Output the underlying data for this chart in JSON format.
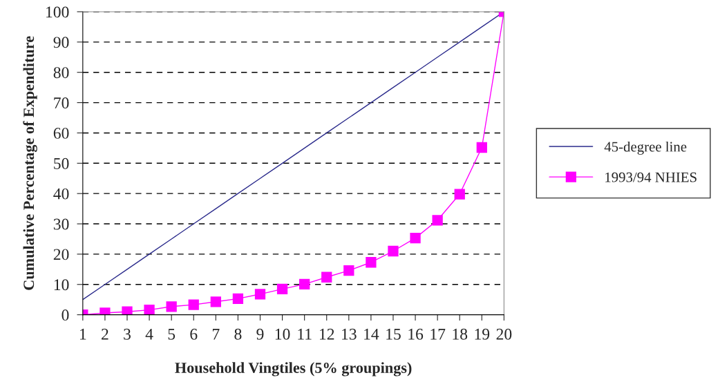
{
  "chart_data": {
    "type": "line",
    "xlabel": "Household Vingtiles (5% groupings)",
    "ylabel": "Cumulative Percentage of Expenditure",
    "x": [
      1,
      2,
      3,
      4,
      5,
      6,
      7,
      8,
      9,
      10,
      11,
      12,
      13,
      14,
      15,
      16,
      17,
      18,
      19,
      20
    ],
    "xlim": [
      1,
      20
    ],
    "xticks": [
      1,
      2,
      3,
      4,
      5,
      6,
      7,
      8,
      9,
      10,
      11,
      12,
      13,
      14,
      15,
      16,
      17,
      18,
      19,
      20
    ],
    "ylim": [
      0,
      100
    ],
    "yticks": [
      0,
      10,
      20,
      30,
      40,
      50,
      60,
      70,
      80,
      90,
      100
    ],
    "grid": "y",
    "legend": "right",
    "series": [
      {
        "name": "45-degree line",
        "color": "#2b2b8c",
        "marker": "none",
        "values": [
          5,
          10,
          15,
          20,
          25,
          30,
          35,
          40,
          45,
          50,
          55,
          60,
          65,
          70,
          75,
          80,
          85,
          90,
          95,
          100
        ]
      },
      {
        "name": "1993/94 NHIES",
        "color": "#ff00ff",
        "marker": "square",
        "values": [
          0,
          0.6,
          1.0,
          1.6,
          2.7,
          3.3,
          4.3,
          5.3,
          6.8,
          8.5,
          10.1,
          12.4,
          14.6,
          17.3,
          21,
          25.3,
          31.2,
          39.8,
          55.2,
          100
        ]
      }
    ]
  }
}
